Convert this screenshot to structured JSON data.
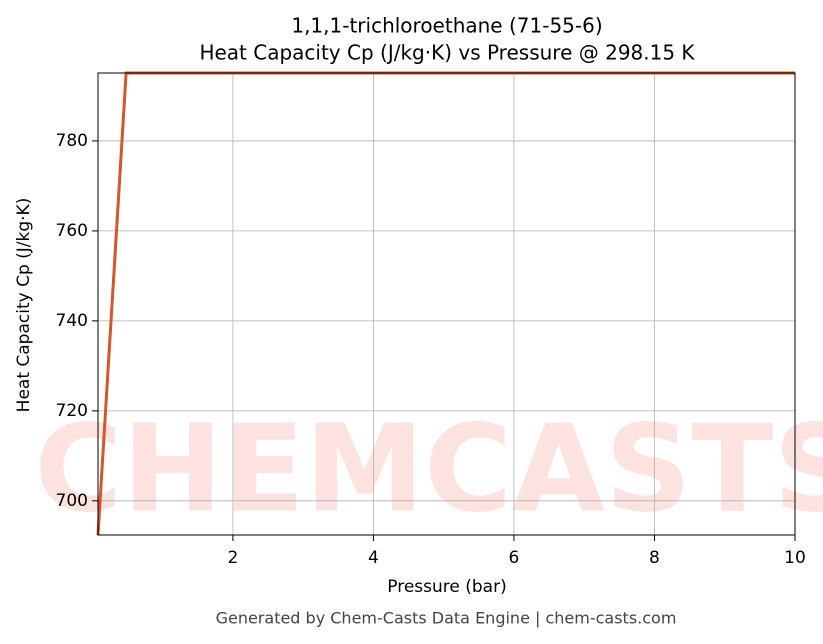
{
  "chart_data": {
    "type": "line",
    "title": "1,1,1-trichloroethane (71-55-6)",
    "subtitle": "Heat Capacity Cp (J/kg·K) vs Pressure @ 298.15 K",
    "x_label": "Pressure (bar)",
    "y_label": "Heat Capacity Cp (J/kg·K)",
    "footer": "Generated by Chem-Casts Data Engine | chem-casts.com",
    "watermark": "CHEMCASTS",
    "x": [
      0.08,
      0.48,
      1,
      2,
      3,
      4,
      5,
      6,
      7,
      8,
      9,
      10
    ],
    "series": [
      {
        "name": "Heat Capacity Cp",
        "color": "#d4572a",
        "values": [
          692.4,
          795.1,
          795.1,
          795.1,
          795.1,
          795.1,
          795.1,
          795.1,
          795.1,
          795.1,
          795.1,
          795.1
        ]
      }
    ],
    "xlim": [
      0.08,
      10
    ],
    "ylim": [
      692.4,
      795.1
    ],
    "xticks": [
      2,
      4,
      6,
      8,
      10
    ],
    "yticks": [
      700,
      720,
      740,
      760,
      780
    ],
    "grid": true
  }
}
